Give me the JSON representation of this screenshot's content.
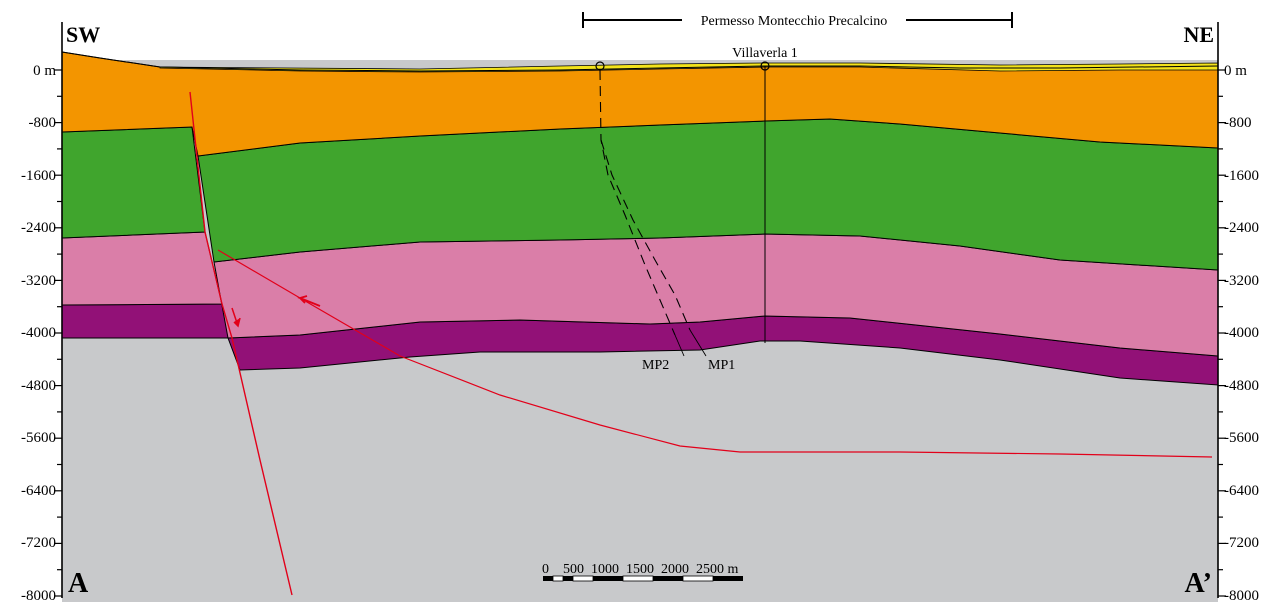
{
  "section": {
    "title": "Permesso Montecchio Precalcino",
    "corner_left_top": "SW",
    "corner_right_top": "NE",
    "corner_left_bottom": "A",
    "corner_right_bottom": "A’",
    "well_name": "Villaverla 1",
    "well_path_labels": [
      "MP2",
      "MP1"
    ],
    "scale_bar_label": "0    500  1000  1500  2000  2500 m"
  },
  "left_axis_labels": [
    "0 m",
    "-800",
    "-1600",
    "-2400",
    "-3200",
    "-4000",
    "-4800",
    "-5600",
    "-6400",
    "-7200",
    "-8000"
  ],
  "right_axis_labels": [
    "0 m",
    "-800",
    "-1600",
    "-2400",
    "-3200",
    "-4000",
    "-4800",
    "-5600",
    "-6400",
    "-7200",
    "-8000"
  ],
  "colors": {
    "quaternary_yellow": "#f3e31a",
    "orange_unit": "#f39500",
    "green_unit": "#40a52d",
    "pink_unit": "#da7ea8",
    "purple_unit": "#921177",
    "basement_grey": "#c8c9cb",
    "fault_red": "#e2001a"
  }
}
